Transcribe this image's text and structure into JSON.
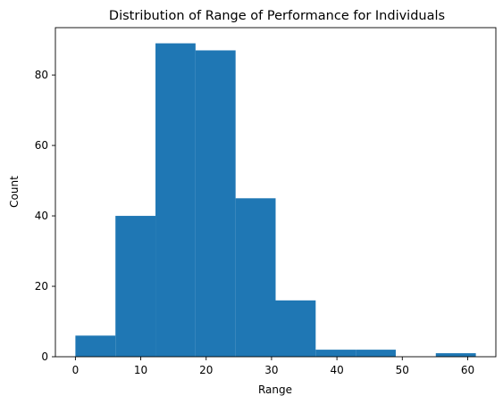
{
  "chart_data": {
    "type": "bar",
    "title": "Distribution of Range of Performance for Individuals",
    "xlabel": "Range",
    "ylabel": "Count",
    "bin_edges": [
      0,
      6.125,
      12.25,
      18.375,
      24.5,
      30.625,
      36.75,
      42.875,
      49.0,
      55.125,
      61.25
    ],
    "values": [
      6,
      40,
      89,
      87,
      45,
      16,
      2,
      2,
      0,
      1
    ],
    "xlim": [
      -3.06,
      64.31
    ],
    "ylim": [
      0,
      93.45
    ],
    "xticks": [
      0,
      10,
      20,
      30,
      40,
      50,
      60
    ],
    "yticks": [
      0,
      20,
      40,
      60,
      80
    ],
    "bar_color": "#1f77b4",
    "grid": false
  }
}
